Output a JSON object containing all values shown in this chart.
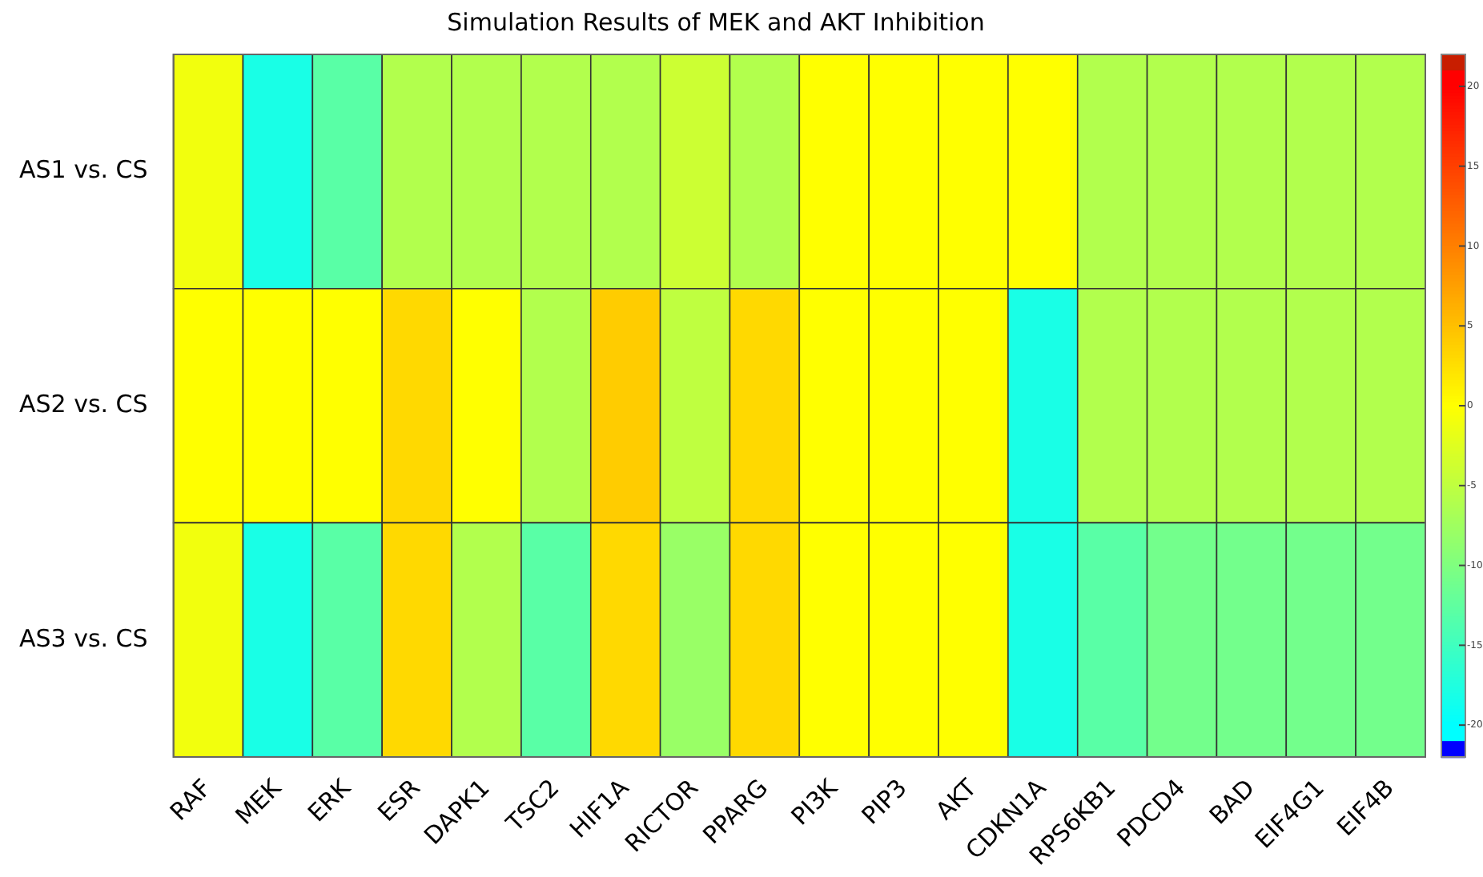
{
  "chart_data": {
    "type": "heatmap",
    "title": "Simulation Results of MEK and AKT Inhibition",
    "categories": [
      "RAF",
      "MEK",
      "ERK",
      "ESR",
      "DAPK1",
      "TSC2",
      "HIF1A",
      "RICTOR",
      "PPARG",
      "PI3K",
      "PIP3",
      "AKT",
      "CDKN1A",
      "RPS6KB1",
      "PDCD4",
      "BAD",
      "EIF4G1",
      "EIF4B"
    ],
    "y_categories": [
      "AS1 vs. CS",
      "AS2 vs. CS",
      "AS3 vs. CS"
    ],
    "cells": [
      [
        -1,
        -18,
        -13,
        -6,
        -6,
        -6,
        -6,
        -4,
        -6,
        0,
        0,
        0,
        0,
        -6,
        -6,
        -6,
        -6,
        -6
      ],
      [
        0,
        0,
        0,
        3,
        0,
        -6,
        4,
        -5,
        3,
        0,
        0,
        0,
        -18,
        -6,
        -6,
        -6,
        -6,
        -6
      ],
      [
        -1,
        -18,
        -13,
        3,
        -6,
        -13,
        3,
        -8,
        3,
        0,
        0,
        0,
        -18,
        -13,
        -11,
        -11,
        -11,
        -11
      ]
    ],
    "clim": [
      -22,
      22
    ],
    "cticks": [
      -20,
      -15,
      -10,
      -5,
      0,
      5,
      10,
      15,
      20
    ]
  }
}
